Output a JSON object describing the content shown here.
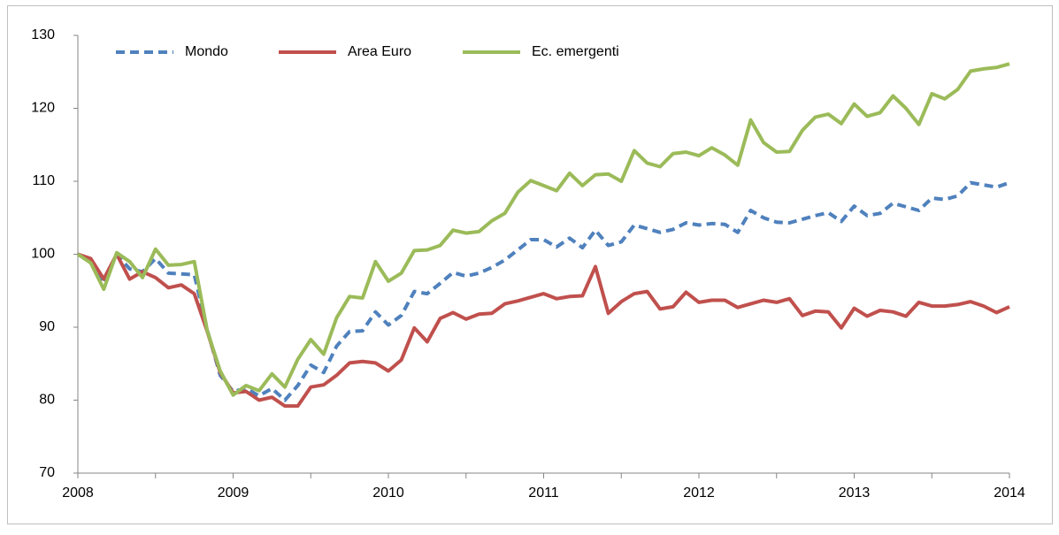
{
  "chart_data": {
    "type": "line",
    "categories": [
      "2008",
      null,
      null,
      null,
      null,
      null,
      null,
      null,
      null,
      null,
      null,
      null,
      "2009",
      null,
      null,
      null,
      null,
      null,
      null,
      null,
      null,
      null,
      null,
      null,
      "2010",
      null,
      null,
      null,
      null,
      null,
      null,
      null,
      null,
      null,
      null,
      null,
      "2011",
      null,
      null,
      null,
      null,
      null,
      null,
      null,
      null,
      null,
      null,
      null,
      "2012",
      null,
      null,
      null,
      null,
      null,
      null,
      null,
      null,
      null,
      null,
      null,
      "2013",
      null,
      null,
      null,
      null,
      null,
      null,
      null,
      null,
      null,
      null,
      null,
      "2014"
    ],
    "series": [
      {
        "name": "Mondo",
        "color": "#4f81bd",
        "line_style": "dashed",
        "values": [
          100,
          99,
          96,
          100,
          98,
          97.6,
          99.4,
          97.4,
          97.3,
          97.2,
          89.6,
          83.4,
          81.2,
          81.6,
          80.6,
          81.6,
          80,
          82,
          84.8,
          83.8,
          87.4,
          89.4,
          89.5,
          92.1,
          90.3,
          91.6,
          94.9,
          94.6,
          96,
          97.5,
          97,
          97.4,
          98.2,
          99.2,
          100.6,
          102,
          102,
          101,
          102.2,
          100.9,
          103.3,
          101.2,
          101.7,
          104,
          103.5,
          103,
          103.4,
          104.3,
          104,
          104.2,
          104.1,
          103,
          106,
          105,
          104.4,
          104.3,
          104.8,
          105.3,
          105.7,
          104.5,
          106.6,
          105.3,
          105.6,
          107,
          106.5,
          106,
          107.7,
          107.5,
          108,
          109.8,
          109.5,
          109.2,
          109.8
        ]
      },
      {
        "name": "Area Euro",
        "color": "#c0504d",
        "line_style": "solid",
        "values": [
          100,
          99.4,
          96.6,
          100,
          96.6,
          97.6,
          96.8,
          95.4,
          95.8,
          94.6,
          89.4,
          83.8,
          81,
          81.2,
          80,
          80.4,
          79.2,
          79.2,
          81.8,
          82.1,
          83.4,
          85.1,
          85.3,
          85.1,
          84,
          85.5,
          89.9,
          88,
          91.2,
          92,
          91.1,
          91.8,
          91.9,
          93.2,
          93.6,
          94.1,
          94.6,
          93.9,
          94.2,
          94.3,
          98.3,
          91.9,
          93.5,
          94.6,
          94.9,
          92.5,
          92.8,
          94.8,
          93.4,
          93.7,
          93.7,
          92.7,
          93.2,
          93.7,
          93.4,
          93.9,
          91.6,
          92.2,
          92.1,
          89.9,
          92.6,
          91.5,
          92.3,
          92.1,
          91.5,
          93.4,
          92.9,
          92.9,
          93.1,
          93.5,
          92.9,
          92,
          92.8
        ]
      },
      {
        "name": "Ec. emergenti",
        "color": "#9bbb59",
        "line_style": "solid",
        "values": [
          100,
          98.8,
          95.2,
          100.2,
          99,
          96.8,
          100.7,
          98.5,
          98.6,
          99,
          89.5,
          84,
          80.7,
          82,
          81.3,
          83.6,
          81.8,
          85.6,
          88.3,
          86.3,
          91.3,
          94.2,
          94,
          99,
          96.3,
          97.4,
          100.5,
          100.6,
          101.2,
          103.3,
          102.9,
          103.1,
          104.6,
          105.6,
          108.5,
          110.1,
          109.4,
          108.7,
          111.1,
          109.4,
          110.9,
          111,
          110,
          114.2,
          112.5,
          112,
          113.8,
          114,
          113.5,
          114.6,
          113.6,
          112.2,
          118.4,
          115.3,
          114,
          114.1,
          117,
          118.8,
          119.2,
          117.9,
          120.6,
          118.9,
          119.4,
          121.7,
          120,
          117.8,
          122,
          121.3,
          122.6,
          125.1,
          125.4,
          125.6,
          126.1
        ]
      }
    ],
    "ylim": [
      70,
      130
    ],
    "yticks": [
      70,
      80,
      90,
      100,
      110,
      120,
      130
    ],
    "grid": false,
    "legend": "top-left"
  }
}
